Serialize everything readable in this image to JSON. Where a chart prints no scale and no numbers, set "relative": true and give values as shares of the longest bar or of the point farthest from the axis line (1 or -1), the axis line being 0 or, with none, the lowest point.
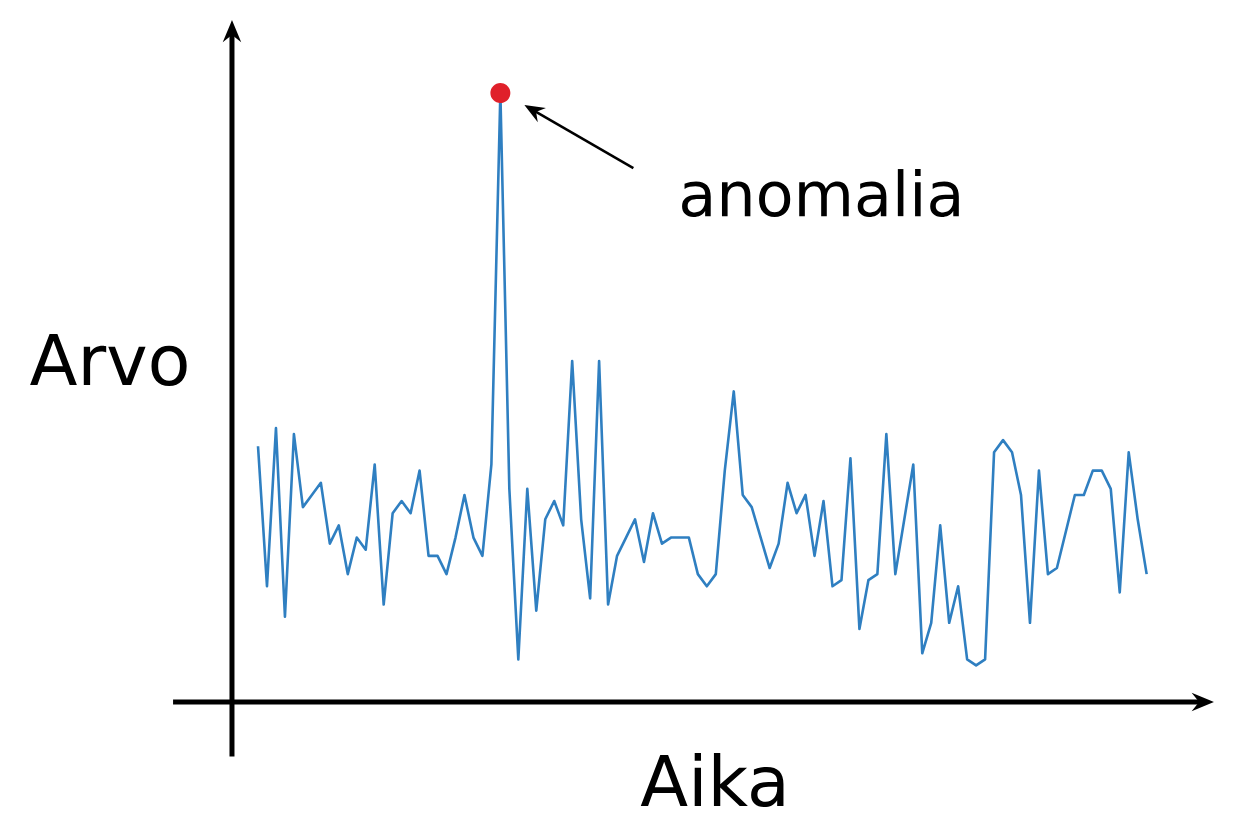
{
  "chart_data": {
    "type": "line",
    "relative": true,
    "xlabel": "Aika",
    "ylabel": "Arvo",
    "marker": "none",
    "annotations": [
      "anomalia"
    ],
    "categories": [
      null,
      null,
      null,
      null,
      null,
      null,
      null,
      null,
      null,
      null,
      null,
      null,
      null,
      null,
      null,
      null,
      null,
      null,
      null,
      null,
      null,
      null,
      null,
      null,
      null,
      null,
      null,
      null,
      null,
      null,
      null,
      null,
      null,
      null,
      null,
      null,
      null,
      null,
      null,
      null,
      null,
      null,
      null,
      null,
      null,
      null,
      null,
      null,
      null,
      null,
      null,
      null,
      null,
      null,
      null,
      null,
      null,
      null,
      null,
      null,
      null,
      null,
      null,
      null,
      null,
      null,
      null,
      null,
      null,
      null,
      null,
      null,
      null,
      null,
      null,
      null,
      null,
      null,
      null,
      null,
      null,
      null,
      null,
      null,
      null,
      null,
      null,
      null,
      null,
      null,
      null,
      null,
      null,
      null,
      null,
      null,
      null,
      null,
      null,
      null
    ],
    "series": [
      {
        "color": "#2f7fc1",
        "values": [
          0.42,
          0.19,
          0.45,
          0.14,
          0.44,
          0.32,
          0.34,
          0.36,
          0.26,
          0.29,
          0.21,
          0.27,
          0.25,
          0.39,
          0.16,
          0.31,
          0.33,
          0.31,
          0.38,
          0.24,
          0.24,
          0.21,
          0.27,
          0.34,
          0.27,
          0.24,
          0.39,
          1,
          0.35,
          0.07,
          0.35,
          0.15,
          0.3,
          0.33,
          0.29,
          0.56,
          0.3,
          0.17,
          0.56,
          0.16,
          0.24,
          0.27,
          0.3,
          0.23,
          0.31,
          0.26,
          0.27,
          0.27,
          0.27,
          0.21,
          0.19,
          0.21,
          0.38,
          0.51,
          0.34,
          0.32,
          0.27,
          0.22,
          0.26,
          0.36,
          0.31,
          0.34,
          0.24,
          0.33,
          0.19,
          0.2,
          0.4,
          0.12,
          0.2,
          0.21,
          0.44,
          0.21,
          0.3,
          0.39,
          0.08,
          0.13,
          0.29,
          0.13,
          0.19,
          0.07,
          0.06,
          0.07,
          0.41,
          0.43,
          0.41,
          0.34,
          0.13,
          0.38,
          0.21,
          0.22,
          0.28,
          0.34,
          0.34,
          0.38,
          0.38,
          0.35,
          0.18,
          0.41,
          0.3,
          0.21
        ]
      }
    ]
  }
}
